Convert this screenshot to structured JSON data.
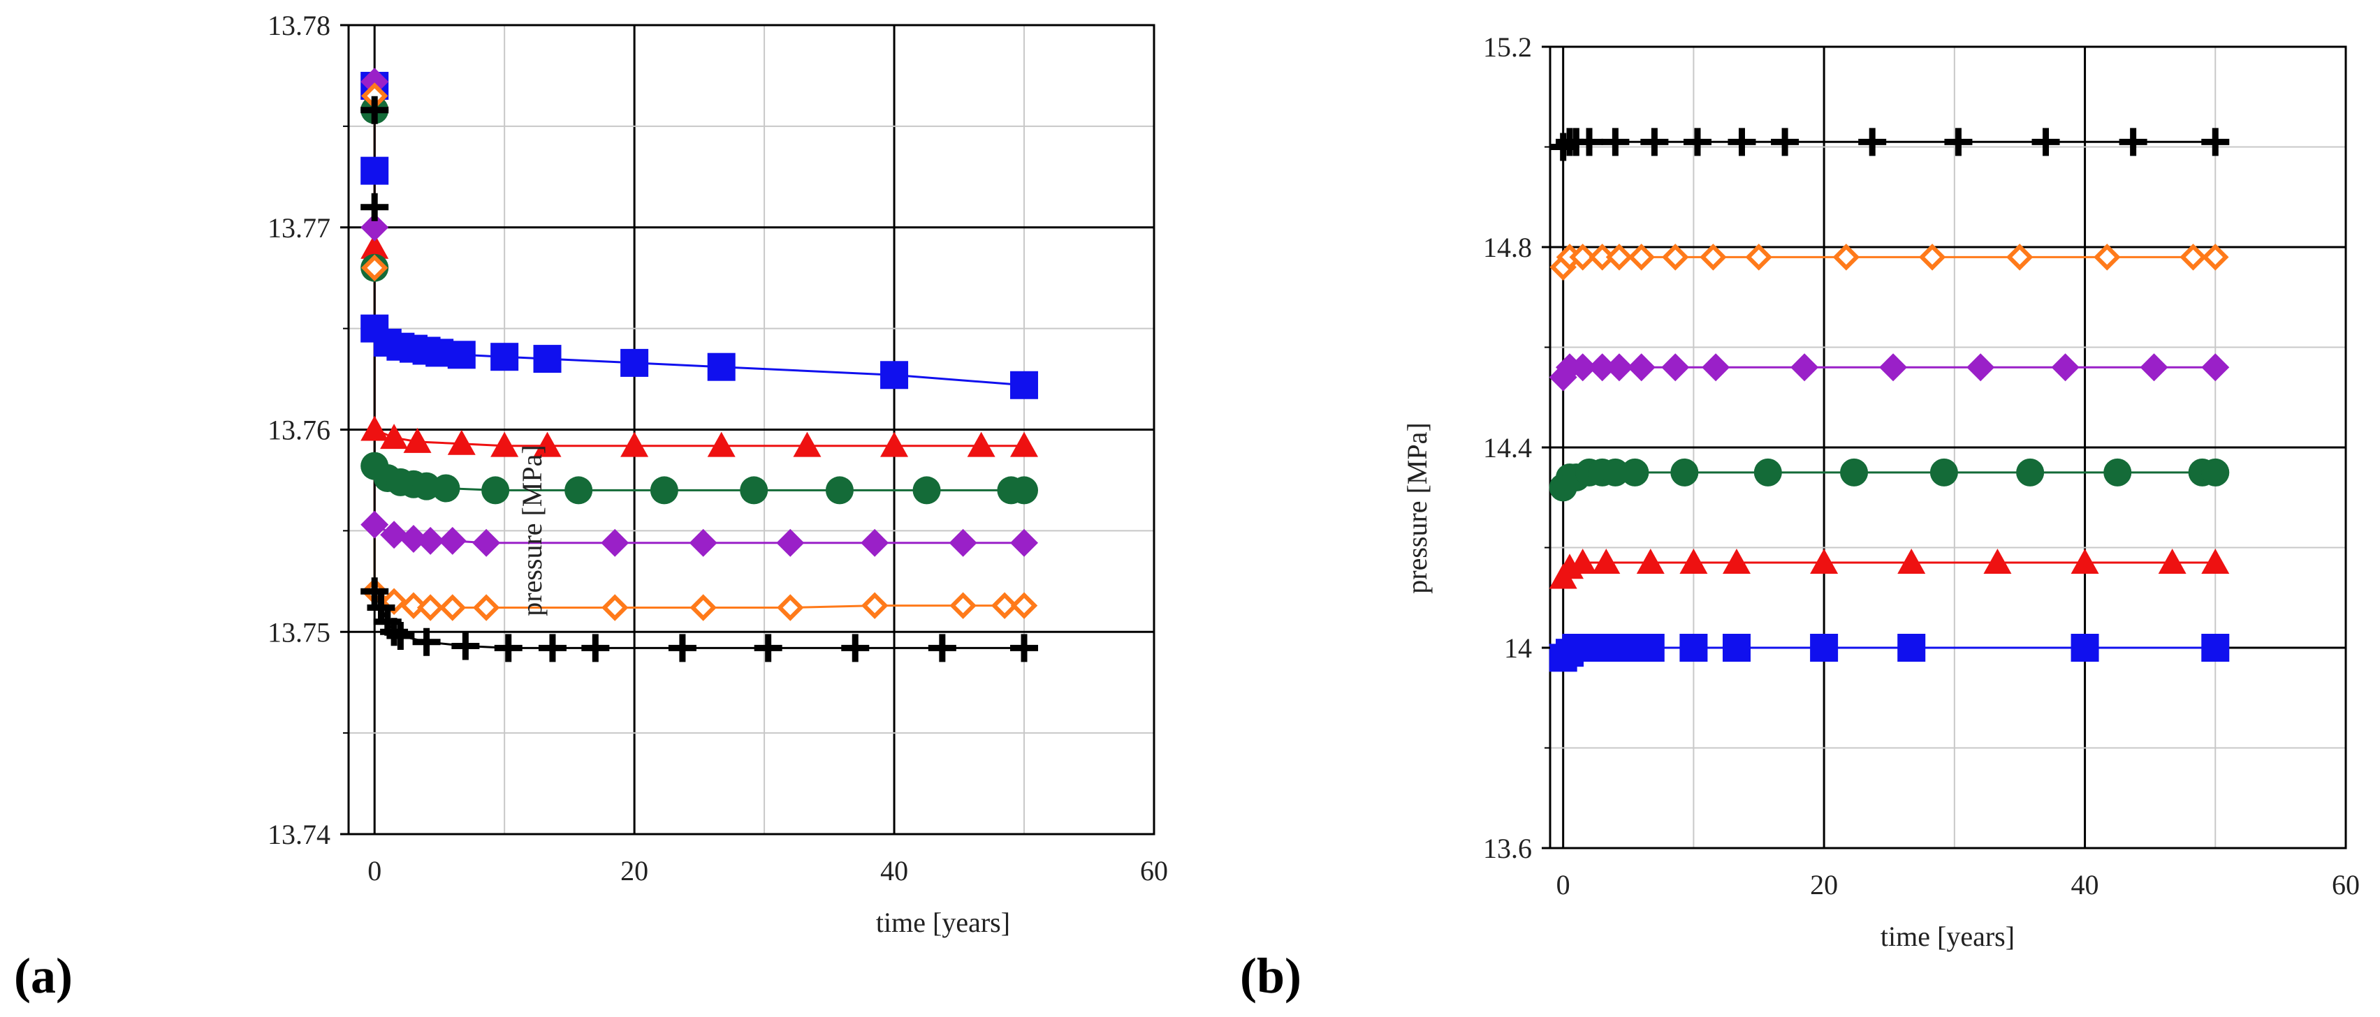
{
  "chart_data": [
    {
      "type": "line",
      "panel_label": "(a)",
      "title": "",
      "xlabel": "time [years]",
      "ylabel": "pressure [MPa]",
      "xlim": [
        -2,
        60
      ],
      "ylim": [
        13.74,
        13.78
      ],
      "xticks": [
        "0",
        "20",
        "40",
        "60"
      ],
      "yticks": [
        "13.74",
        "13.75",
        "13.76",
        "13.77",
        "13.78"
      ],
      "grid": true,
      "legend": "none",
      "series": [
        {
          "name": "blue squares",
          "color": "#1010ee",
          "marker": "square",
          "x": [
            0,
            0,
            0,
            1,
            2,
            3,
            4,
            5,
            6.7,
            10,
            13.3,
            20,
            26.7,
            40,
            50
          ],
          "y": [
            13.777,
            13.7728,
            13.765,
            13.7643,
            13.7641,
            13.764,
            13.7639,
            13.7638,
            13.7637,
            13.7636,
            13.7635,
            13.7633,
            13.7631,
            13.7627,
            13.7622
          ]
        },
        {
          "name": "red triangles",
          "color": "#ee1111",
          "marker": "triangle",
          "x": [
            0,
            0,
            0,
            1.5,
            3.3,
            6.7,
            10,
            13.3,
            20,
            26.7,
            33.3,
            40,
            46.7,
            50
          ],
          "y": [
            13.7765,
            13.769,
            13.76,
            13.7596,
            13.7594,
            13.7593,
            13.7592,
            13.7592,
            13.7592,
            13.7592,
            13.7592,
            13.7592,
            13.7592,
            13.7592
          ]
        },
        {
          "name": "green circles",
          "color": "#146b38",
          "marker": "circle",
          "x": [
            0,
            0,
            0,
            1,
            2,
            3,
            4,
            5.5,
            9.3,
            15.7,
            22.3,
            29.2,
            35.8,
            42.5,
            49,
            50
          ],
          "y": [
            13.7758,
            13.768,
            13.7582,
            13.7576,
            13.7574,
            13.7573,
            13.7572,
            13.7571,
            13.757,
            13.757,
            13.757,
            13.757,
            13.757,
            13.757,
            13.757,
            13.757
          ]
        },
        {
          "name": "purple diamonds",
          "color": "#9a20c8",
          "marker": "diamond",
          "x": [
            0,
            0,
            0,
            1.5,
            3,
            4.3,
            6,
            8.6,
            18.5,
            25.3,
            32,
            38.5,
            45.3,
            50
          ],
          "y": [
            13.7772,
            13.77,
            13.7553,
            13.7548,
            13.7546,
            13.7545,
            13.7545,
            13.7544,
            13.7544,
            13.7544,
            13.7544,
            13.7544,
            13.7544,
            13.7544
          ]
        },
        {
          "name": "orange open diamonds",
          "color": "#ff7a1a",
          "marker": "open-diamond",
          "x": [
            0,
            0,
            0,
            1.5,
            3,
            4.3,
            6,
            8.6,
            18.5,
            25.3,
            32,
            38.5,
            45.3,
            48.5,
            50
          ],
          "y": [
            13.7765,
            13.768,
            13.752,
            13.7515,
            13.7513,
            13.7512,
            13.7512,
            13.7512,
            13.7512,
            13.7512,
            13.7512,
            13.7513,
            13.7513,
            13.7513,
            13.7513
          ]
        },
        {
          "name": "black crosses",
          "color": "#000000",
          "marker": "cross",
          "x": [
            0,
            0,
            0,
            0.5,
            1,
            1.5,
            2,
            4,
            7,
            10.3,
            13.7,
            17,
            23.7,
            30.3,
            37,
            43.7,
            50
          ],
          "y": [
            13.7758,
            13.771,
            13.752,
            13.7512,
            13.7505,
            13.75,
            13.7498,
            13.7495,
            13.7493,
            13.7492,
            13.7492,
            13.7492,
            13.7492,
            13.7492,
            13.7492,
            13.7492,
            13.7492
          ]
        }
      ]
    },
    {
      "type": "line",
      "panel_label": "(b)",
      "title": "",
      "xlabel": "time [years]",
      "ylabel": "pressure [MPa]",
      "xlim": [
        -1,
        60
      ],
      "ylim": [
        13.6,
        15.2
      ],
      "xticks": [
        "0",
        "20",
        "40",
        "60"
      ],
      "yticks": [
        "13.6",
        "14",
        "14.4",
        "14.8",
        "15.2"
      ],
      "grid": true,
      "legend": "none",
      "series": [
        {
          "name": "black crosses",
          "color": "#000000",
          "marker": "cross",
          "x": [
            0,
            0.5,
            1,
            2,
            4,
            7,
            10.3,
            13.7,
            17,
            23.7,
            30.3,
            37,
            43.7,
            50
          ],
          "y": [
            15.0,
            15.01,
            15.01,
            15.01,
            15.01,
            15.01,
            15.01,
            15.01,
            15.01,
            15.01,
            15.01,
            15.01,
            15.01,
            15.01
          ]
        },
        {
          "name": "orange open diamonds",
          "color": "#ff7a1a",
          "marker": "open-diamond",
          "x": [
            0,
            0.5,
            1.5,
            3,
            4.3,
            6,
            8.6,
            11.5,
            15,
            21.7,
            28.3,
            35,
            41.7,
            48.3,
            50
          ],
          "y": [
            14.76,
            14.78,
            14.78,
            14.78,
            14.78,
            14.78,
            14.78,
            14.78,
            14.78,
            14.78,
            14.78,
            14.78,
            14.78,
            14.78,
            14.78
          ]
        },
        {
          "name": "purple diamonds",
          "color": "#9a20c8",
          "marker": "diamond",
          "x": [
            0,
            0.5,
            1.5,
            3,
            4.3,
            6,
            8.6,
            11.7,
            18.5,
            25.3,
            32,
            38.5,
            45.3,
            50
          ],
          "y": [
            14.54,
            14.56,
            14.56,
            14.56,
            14.56,
            14.56,
            14.56,
            14.56,
            14.56,
            14.56,
            14.56,
            14.56,
            14.56,
            14.56
          ]
        },
        {
          "name": "green circles",
          "color": "#146b38",
          "marker": "circle",
          "x": [
            0,
            0.5,
            1,
            2,
            3,
            4,
            5.5,
            9.3,
            15.7,
            22.3,
            29.2,
            35.8,
            42.5,
            49,
            50
          ],
          "y": [
            14.32,
            14.34,
            14.34,
            14.35,
            14.35,
            14.35,
            14.35,
            14.35,
            14.35,
            14.35,
            14.35,
            14.35,
            14.35,
            14.35,
            14.35
          ]
        },
        {
          "name": "red triangles",
          "color": "#ee1111",
          "marker": "triangle",
          "x": [
            0,
            0.5,
            1.5,
            3.3,
            6.7,
            10,
            13.3,
            20,
            26.7,
            33.3,
            40,
            46.7,
            50
          ],
          "y": [
            14.14,
            14.16,
            14.17,
            14.17,
            14.17,
            14.17,
            14.17,
            14.17,
            14.17,
            14.17,
            14.17,
            14.17,
            14.17
          ]
        },
        {
          "name": "blue squares",
          "color": "#1010ee",
          "marker": "square",
          "x": [
            0,
            0.5,
            1,
            2,
            3,
            4,
            5,
            6.7,
            10,
            13.3,
            20,
            26.7,
            40,
            50
          ],
          "y": [
            13.98,
            13.99,
            14.0,
            14.0,
            14.0,
            14.0,
            14.0,
            14.0,
            14.0,
            14.0,
            14.0,
            14.0,
            14.0,
            14.0
          ]
        }
      ]
    }
  ]
}
